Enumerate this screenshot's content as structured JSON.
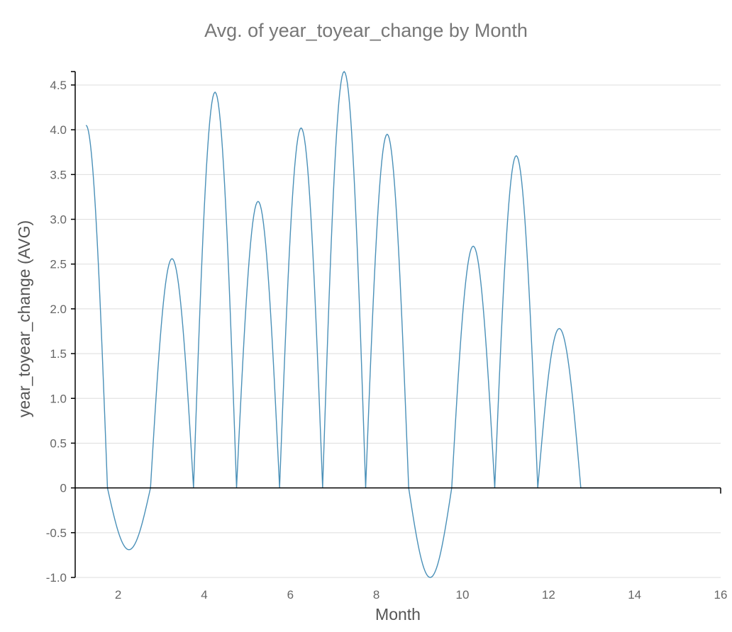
{
  "chart_data": {
    "type": "line",
    "title": "Avg. of year_toyear_change by Month",
    "xlabel": "Month",
    "ylabel": "year_toyear_change (AVG)",
    "xlim": [
      1,
      16
    ],
    "ylim": [
      -1.0,
      4.65
    ],
    "x_ticks": [
      2,
      4,
      6,
      8,
      10,
      12,
      14,
      16
    ],
    "y_ticks": [
      -1.0,
      -0.5,
      0,
      0.5,
      1.0,
      1.5,
      2.0,
      2.5,
      3.0,
      3.5,
      4.0,
      4.5
    ],
    "y_tick_labels": [
      "-1.0",
      "-0.5",
      "0",
      "0.5",
      "1.0",
      "1.5",
      "2.0",
      "2.5",
      "3.0",
      "3.5",
      "4.0",
      "4.5"
    ],
    "grid": true,
    "legend": "none",
    "interpolation": "smooth curve returning to zero between months",
    "series": [
      {
        "color": "#4a90b8",
        "points": [
          {
            "x": 1.25,
            "y": 4.05
          },
          {
            "x": 2.25,
            "y": -0.69
          },
          {
            "x": 3.25,
            "y": 2.56
          },
          {
            "x": 4.25,
            "y": 4.42
          },
          {
            "x": 5.25,
            "y": 3.2
          },
          {
            "x": 6.25,
            "y": 4.02
          },
          {
            "x": 7.25,
            "y": 4.65
          },
          {
            "x": 8.25,
            "y": 3.95
          },
          {
            "x": 9.25,
            "y": -1.0
          },
          {
            "x": 10.25,
            "y": 2.7
          },
          {
            "x": 11.25,
            "y": 3.71
          },
          {
            "x": 12.25,
            "y": 1.78
          }
        ],
        "tail_end_x": 15.75
      }
    ]
  }
}
